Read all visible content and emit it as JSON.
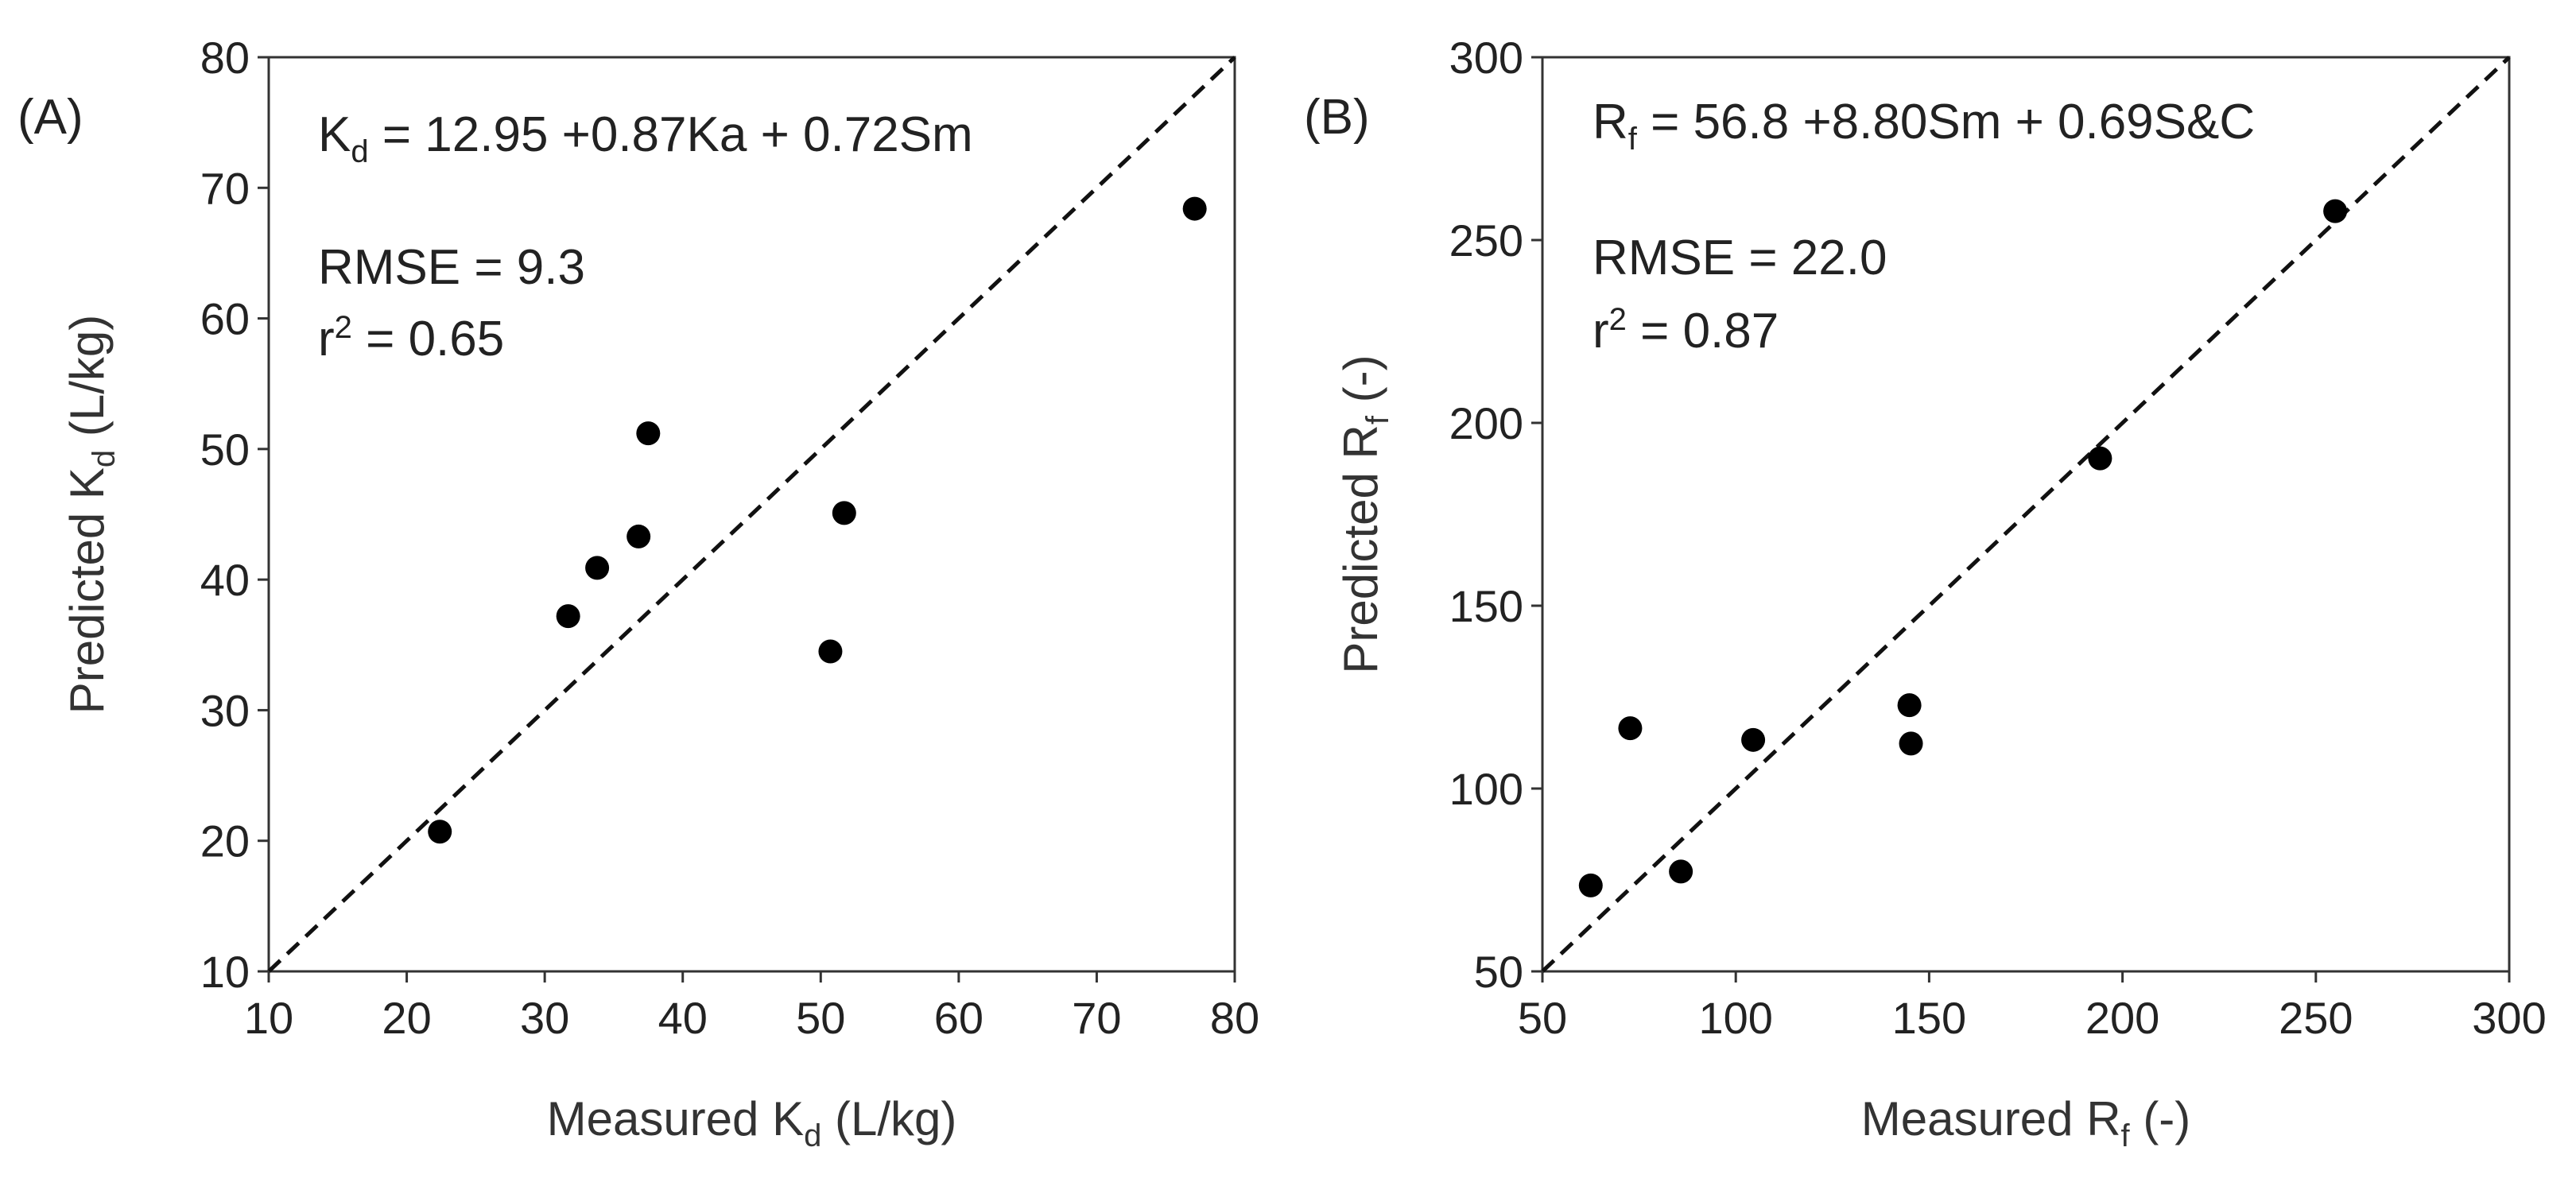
{
  "chart_data": [
    {
      "type": "scatter",
      "panel_label": "(A)",
      "xlabel": {
        "main": "Measured K",
        "sub": "d",
        "unit": " (L/kg)"
      },
      "ylabel": {
        "main": "Predicted K",
        "sub": "d",
        "unit": " (L/kg)"
      },
      "xlim": [
        10,
        80
      ],
      "ylim": [
        10,
        80
      ],
      "xticks": [
        10,
        20,
        30,
        40,
        50,
        60,
        70,
        80
      ],
      "yticks": [
        10,
        20,
        30,
        40,
        50,
        60,
        70,
        80
      ],
      "reference_line": "1:1",
      "equation": {
        "lhs": "K",
        "lhs_sub": "d",
        "rhs": " = 12.95 +0.87Ka + 0.72Sm"
      },
      "rmse_text": "RMSE = 9.3",
      "r2_text": {
        "base": "r",
        "sup": "2",
        "rest": " = 0.65"
      },
      "points": [
        {
          "x": 22.4,
          "y": 20.7
        },
        {
          "x": 31.7,
          "y": 37.2
        },
        {
          "x": 33.8,
          "y": 40.9
        },
        {
          "x": 36.8,
          "y": 43.3
        },
        {
          "x": 37.5,
          "y": 51.2
        },
        {
          "x": 50.7,
          "y": 34.5
        },
        {
          "x": 51.7,
          "y": 45.1
        },
        {
          "x": 77.1,
          "y": 68.4
        }
      ]
    },
    {
      "type": "scatter",
      "panel_label": "(B)",
      "xlabel": {
        "main": "Measured R",
        "sub": "f",
        "unit": " (-)"
      },
      "ylabel": {
        "main": "Predicted R",
        "sub": "f",
        "unit": " (-)"
      },
      "xlim": [
        50,
        300
      ],
      "ylim": [
        50,
        300
      ],
      "xticks": [
        50,
        100,
        150,
        200,
        250,
        300
      ],
      "yticks": [
        50,
        100,
        150,
        200,
        250,
        300
      ],
      "reference_line": "1:1",
      "equation": {
        "lhs": "R",
        "lhs_sub": "f",
        "rhs": " = 56.8 +8.80Sm + 0.69S&C"
      },
      "rmse_text": "RMSE = 22.0",
      "r2_text": {
        "base": "r",
        "sup": "2",
        "rest": " = 0.87"
      },
      "points": [
        {
          "x": 62.5,
          "y": 73.5
        },
        {
          "x": 72.7,
          "y": 116.5
        },
        {
          "x": 85.8,
          "y": 77.3
        },
        {
          "x": 104.5,
          "y": 113.3
        },
        {
          "x": 144.9,
          "y": 122.8
        },
        {
          "x": 145.3,
          "y": 112.3
        },
        {
          "x": 194.2,
          "y": 190.3
        },
        {
          "x": 255.0,
          "y": 257.9
        }
      ]
    }
  ]
}
